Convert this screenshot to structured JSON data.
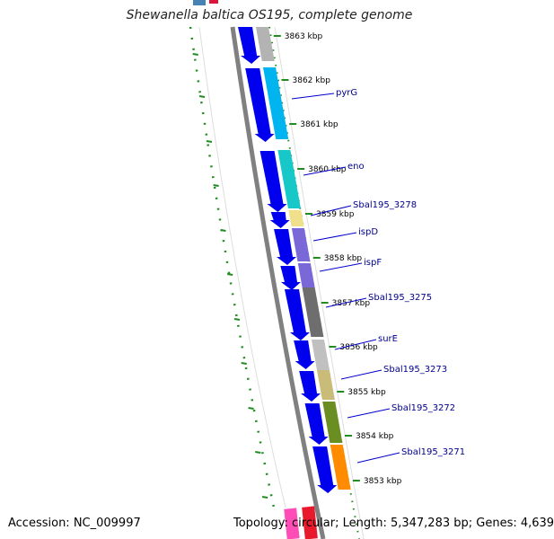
{
  "title": "Shewanella baltica OS195, complete genome",
  "footer": {
    "accession": "Accession: NC_009997",
    "summary": "Topology: circular; Length: 5,347,283 bp; Genes: 4,639"
  },
  "kbp_labels": [
    "3863 kbp",
    "3862 kbp",
    "3861 kbp",
    "3860 kbp",
    "3859 kbp",
    "3858 kbp",
    "3857 kbp",
    "3856 kbp",
    "3855 kbp",
    "3854 kbp",
    "3853 kbp"
  ],
  "genes": [
    {
      "name": "",
      "color": "#b3b3b3"
    },
    {
      "name": "pyrG",
      "color": "#00b4f0"
    },
    {
      "name": "eno",
      "color": "#18c8c8"
    },
    {
      "name": "Sbal195_3278",
      "color": "#f0e08c"
    },
    {
      "name": "ispD",
      "color": "#7b68d8"
    },
    {
      "name": "ispF",
      "color": "#7b68d8"
    },
    {
      "name": "Sbal195_3275",
      "color": "#6e6e6e"
    },
    {
      "name": "surE",
      "color": "#c0c0c0"
    },
    {
      "name": "Sbal195_3273",
      "color": "#c8bc78"
    },
    {
      "name": "Sbal195_3272",
      "color": "#6b8e23"
    },
    {
      "name": "Sbal195_3271",
      "color": "#ff8c00"
    }
  ],
  "colors": {
    "cds_strand": "#0000ee",
    "backbone": "#808080",
    "tick_green": "#228b22",
    "label_blue": "#00008b"
  }
}
